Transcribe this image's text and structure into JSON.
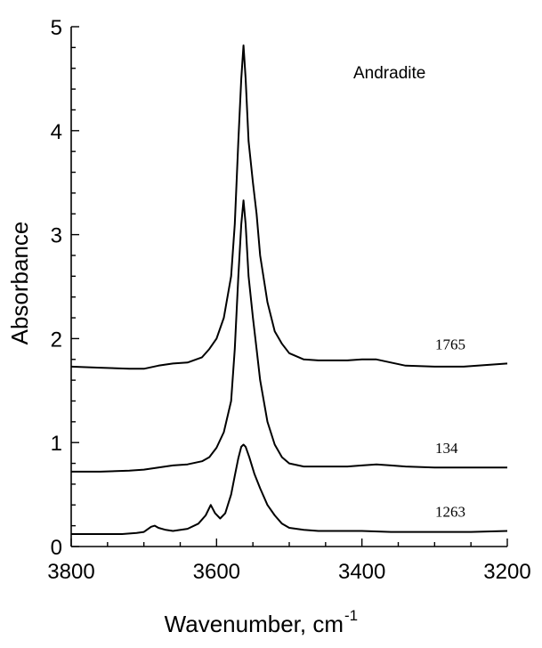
{
  "chart_data": {
    "type": "line",
    "title": "",
    "annotation": "Andradite",
    "xlabel": "Wavenumber, cm",
    "xlabel_superscript": "-1",
    "ylabel": "Absorbance",
    "xlim": [
      3800,
      3200
    ],
    "ylim": [
      0,
      5
    ],
    "x_ticks": [
      3800,
      3600,
      3400,
      3200
    ],
    "y_ticks": [
      0,
      1,
      2,
      3,
      4,
      5
    ],
    "grid": false,
    "series": [
      {
        "name": "1765",
        "points": [
          [
            3800,
            1.73
          ],
          [
            3760,
            1.72
          ],
          [
            3720,
            1.71
          ],
          [
            3700,
            1.71
          ],
          [
            3680,
            1.74
          ],
          [
            3660,
            1.76
          ],
          [
            3640,
            1.77
          ],
          [
            3620,
            1.82
          ],
          [
            3610,
            1.9
          ],
          [
            3600,
            2.0
          ],
          [
            3590,
            2.2
          ],
          [
            3580,
            2.6
          ],
          [
            3575,
            3.1
          ],
          [
            3570,
            3.9
          ],
          [
            3566,
            4.5
          ],
          [
            3563,
            4.82
          ],
          [
            3560,
            4.5
          ],
          [
            3556,
            3.9
          ],
          [
            3550,
            3.5
          ],
          [
            3545,
            3.2
          ],
          [
            3540,
            2.8
          ],
          [
            3530,
            2.35
          ],
          [
            3520,
            2.07
          ],
          [
            3510,
            1.95
          ],
          [
            3500,
            1.86
          ],
          [
            3480,
            1.8
          ],
          [
            3460,
            1.79
          ],
          [
            3440,
            1.79
          ],
          [
            3420,
            1.79
          ],
          [
            3400,
            1.8
          ],
          [
            3380,
            1.8
          ],
          [
            3360,
            1.77
          ],
          [
            3340,
            1.74
          ],
          [
            3300,
            1.73
          ],
          [
            3260,
            1.73
          ],
          [
            3200,
            1.76
          ]
        ]
      },
      {
        "name": "134",
        "points": [
          [
            3800,
            0.72
          ],
          [
            3760,
            0.72
          ],
          [
            3720,
            0.73
          ],
          [
            3700,
            0.74
          ],
          [
            3680,
            0.76
          ],
          [
            3660,
            0.78
          ],
          [
            3640,
            0.79
          ],
          [
            3620,
            0.82
          ],
          [
            3610,
            0.86
          ],
          [
            3600,
            0.95
          ],
          [
            3590,
            1.1
          ],
          [
            3580,
            1.4
          ],
          [
            3575,
            1.9
          ],
          [
            3570,
            2.6
          ],
          [
            3566,
            3.1
          ],
          [
            3563,
            3.33
          ],
          [
            3560,
            3.1
          ],
          [
            3556,
            2.6
          ],
          [
            3550,
            2.2
          ],
          [
            3545,
            1.9
          ],
          [
            3540,
            1.6
          ],
          [
            3530,
            1.2
          ],
          [
            3520,
            0.98
          ],
          [
            3510,
            0.86
          ],
          [
            3500,
            0.8
          ],
          [
            3480,
            0.77
          ],
          [
            3460,
            0.77
          ],
          [
            3440,
            0.77
          ],
          [
            3420,
            0.77
          ],
          [
            3400,
            0.78
          ],
          [
            3380,
            0.79
          ],
          [
            3360,
            0.78
          ],
          [
            3340,
            0.77
          ],
          [
            3300,
            0.76
          ],
          [
            3260,
            0.76
          ],
          [
            3200,
            0.76
          ]
        ]
      },
      {
        "name": "1263",
        "points": [
          [
            3800,
            0.12
          ],
          [
            3760,
            0.12
          ],
          [
            3730,
            0.12
          ],
          [
            3710,
            0.13
          ],
          [
            3700,
            0.14
          ],
          [
            3690,
            0.19
          ],
          [
            3685,
            0.2
          ],
          [
            3680,
            0.18
          ],
          [
            3670,
            0.16
          ],
          [
            3660,
            0.15
          ],
          [
            3640,
            0.17
          ],
          [
            3625,
            0.22
          ],
          [
            3615,
            0.3
          ],
          [
            3608,
            0.4
          ],
          [
            3602,
            0.32
          ],
          [
            3595,
            0.27
          ],
          [
            3588,
            0.32
          ],
          [
            3580,
            0.5
          ],
          [
            3575,
            0.68
          ],
          [
            3570,
            0.85
          ],
          [
            3566,
            0.96
          ],
          [
            3563,
            0.98
          ],
          [
            3560,
            0.96
          ],
          [
            3555,
            0.86
          ],
          [
            3548,
            0.7
          ],
          [
            3540,
            0.56
          ],
          [
            3530,
            0.4
          ],
          [
            3520,
            0.3
          ],
          [
            3510,
            0.22
          ],
          [
            3500,
            0.18
          ],
          [
            3480,
            0.16
          ],
          [
            3460,
            0.15
          ],
          [
            3440,
            0.15
          ],
          [
            3400,
            0.15
          ],
          [
            3360,
            0.14
          ],
          [
            3300,
            0.14
          ],
          [
            3250,
            0.14
          ],
          [
            3200,
            0.15
          ]
        ]
      }
    ]
  }
}
